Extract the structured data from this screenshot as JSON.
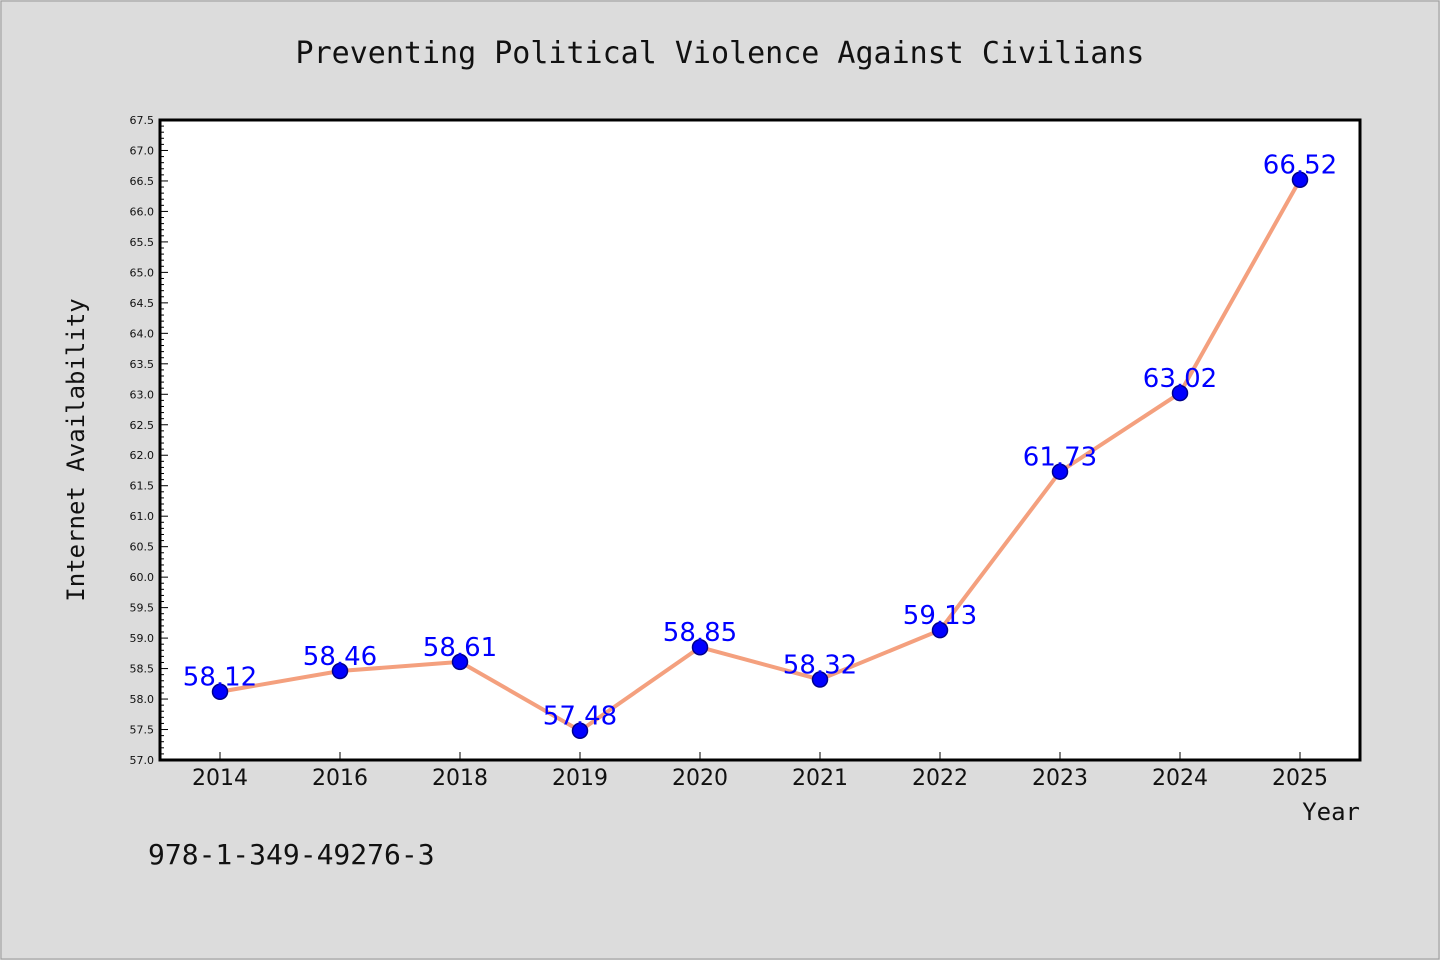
{
  "colors": {
    "background": "#dcdcdc",
    "plot_background": "#ffffff",
    "line": "#f4a07e",
    "marker": "#0000ff",
    "marker_edge": "#00008b",
    "data_label": "#0000ff"
  },
  "footer": {
    "isbn": "978-1-349-49276-3"
  },
  "chart_data": {
    "type": "line",
    "title": "Preventing Political Violence Against Civilians",
    "xlabel": "Year",
    "ylabel": "Internet Availability",
    "categories": [
      "2014",
      "2016",
      "2018",
      "2019",
      "2020",
      "2021",
      "2022",
      "2023",
      "2024",
      "2025"
    ],
    "series": [
      {
        "values": [
          58.12,
          58.46,
          58.61,
          57.48,
          58.85,
          58.32,
          59.13,
          61.73,
          63.02,
          66.52
        ]
      }
    ],
    "data_labels": [
      "58.12",
      "58.46",
      "58.61",
      "57.48",
      "58.85",
      "58.32",
      "59.13",
      "61.73",
      "63.02",
      "66.52"
    ],
    "ylim": [
      57.0,
      67.5
    ],
    "yticks": [
      "57.0",
      "57.5",
      "58.0",
      "58.5",
      "59.0",
      "59.5",
      "60.0",
      "60.5",
      "61.0",
      "61.5",
      "62.0",
      "62.5",
      "63.0",
      "63.5",
      "64.0",
      "64.5",
      "65.0",
      "65.5",
      "66.0",
      "66.5",
      "67.0",
      "67.5"
    ],
    "grid": false,
    "legend": "none"
  }
}
